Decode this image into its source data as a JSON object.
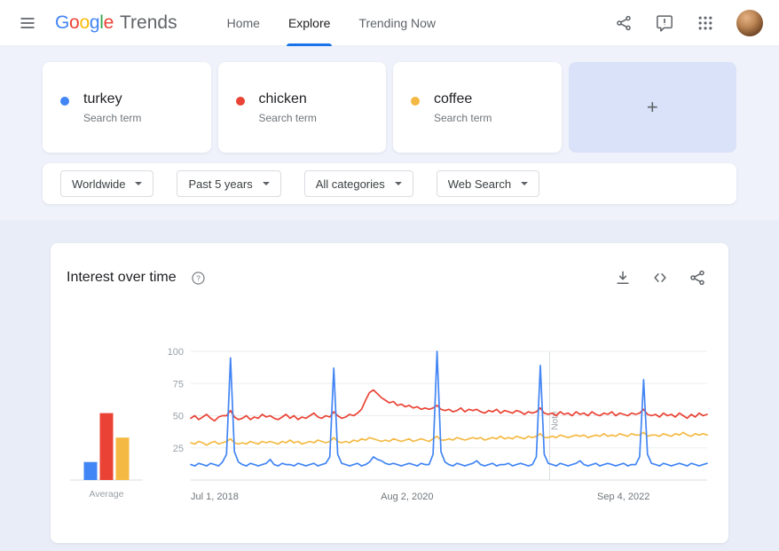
{
  "header": {
    "logo": {
      "letters": [
        "G",
        "o",
        "o",
        "g",
        "l",
        "e"
      ],
      "product": "Trends"
    },
    "nav": [
      {
        "label": "Home",
        "active": false
      },
      {
        "label": "Explore",
        "active": true
      },
      {
        "label": "Trending Now",
        "active": false
      }
    ],
    "right_icons": [
      "share-icon",
      "feedback-icon",
      "apps-grid-icon",
      "avatar"
    ]
  },
  "compare": {
    "terms": [
      {
        "label": "turkey",
        "type_label": "Search term",
        "color": "#4285f4"
      },
      {
        "label": "chicken",
        "type_label": "Search term",
        "color": "#ea4335"
      },
      {
        "label": "coffee",
        "type_label": "Search term",
        "color": "#f4b942"
      }
    ],
    "add_button": {
      "label": "+"
    }
  },
  "filters": [
    {
      "label": "Worldwide"
    },
    {
      "label": "Past 5 years"
    },
    {
      "label": "All categories"
    },
    {
      "label": "Web Search"
    }
  ],
  "panel": {
    "title": "Interest over time",
    "action_icons": [
      "help-icon",
      "download-icon",
      "embed-icon",
      "share-icon"
    ]
  },
  "chart_data": {
    "type": "line",
    "title": "Interest over time",
    "ylim": [
      0,
      100
    ],
    "y_ticks": [
      25,
      50,
      75,
      100
    ],
    "grid": true,
    "legend_position": "none",
    "x_tick_labels": [
      "Jul 1, 2018",
      "Aug 2, 2020",
      "Sep 4, 2022"
    ],
    "x_tick_positions": [
      0,
      0.419,
      0.838
    ],
    "note": {
      "position": 0.695,
      "label": "Note"
    },
    "series": [
      {
        "name": "turkey",
        "color": "#4285f4",
        "values": [
          12,
          11,
          13,
          12,
          11,
          13,
          12,
          11,
          14,
          20,
          95,
          22,
          14,
          12,
          11,
          13,
          12,
          11,
          12,
          13,
          16,
          12,
          11,
          13,
          12,
          12,
          11,
          13,
          12,
          11,
          12,
          13,
          11,
          12,
          13,
          18,
          87,
          20,
          13,
          12,
          11,
          12,
          13,
          11,
          12,
          14,
          18,
          16,
          15,
          13,
          12,
          13,
          12,
          11,
          12,
          13,
          12,
          11,
          13,
          12,
          12,
          20,
          100,
          22,
          14,
          12,
          11,
          13,
          12,
          11,
          12,
          13,
          15,
          12,
          11,
          12,
          13,
          11,
          12,
          12,
          13,
          11,
          12,
          13,
          12,
          11,
          12,
          18,
          89,
          20,
          13,
          12,
          11,
          13,
          12,
          11,
          12,
          13,
          15,
          12,
          11,
          12,
          13,
          11,
          12,
          13,
          12,
          11,
          12,
          13,
          11,
          12,
          12,
          18,
          78,
          20,
          13,
          12,
          11,
          13,
          12,
          11,
          12,
          13,
          12,
          11,
          13,
          12,
          11,
          12,
          13
        ]
      },
      {
        "name": "chicken",
        "color": "#ea4335",
        "values": [
          48,
          50,
          47,
          49,
          51,
          48,
          46,
          49,
          50,
          50,
          54,
          49,
          47,
          48,
          50,
          47,
          49,
          48,
          51,
          49,
          50,
          48,
          47,
          49,
          51,
          48,
          50,
          47,
          49,
          48,
          50,
          52,
          49,
          48,
          50,
          49,
          53,
          50,
          48,
          49,
          51,
          50,
          52,
          55,
          62,
          68,
          70,
          67,
          64,
          62,
          60,
          61,
          58,
          59,
          57,
          58,
          56,
          57,
          55,
          56,
          55,
          56,
          58,
          55,
          54,
          55,
          53,
          54,
          56,
          53,
          55,
          54,
          55,
          53,
          52,
          54,
          53,
          55,
          52,
          54,
          53,
          52,
          54,
          53,
          51,
          53,
          52,
          53,
          56,
          52,
          51,
          52,
          50,
          53,
          51,
          52,
          50,
          53,
          51,
          52,
          50,
          53,
          51,
          50,
          52,
          51,
          53,
          50,
          52,
          51,
          50,
          52,
          51,
          52,
          55,
          51,
          50,
          51,
          49,
          52,
          50,
          51,
          49,
          52,
          50,
          48,
          51,
          49,
          52,
          50,
          51
        ]
      },
      {
        "name": "coffee",
        "color": "#f4b942",
        "values": [
          29,
          28,
          30,
          29,
          27,
          29,
          30,
          28,
          29,
          30,
          32,
          29,
          28,
          29,
          28,
          30,
          29,
          28,
          30,
          29,
          30,
          29,
          28,
          30,
          29,
          31,
          29,
          30,
          28,
          29,
          30,
          29,
          31,
          30,
          29,
          30,
          33,
          30,
          29,
          30,
          29,
          31,
          30,
          32,
          31,
          33,
          32,
          31,
          30,
          31,
          30,
          32,
          31,
          30,
          31,
          32,
          30,
          31,
          32,
          31,
          30,
          32,
          34,
          31,
          31,
          32,
          31,
          33,
          32,
          31,
          32,
          33,
          32,
          33,
          31,
          32,
          33,
          32,
          34,
          32,
          33,
          32,
          34,
          33,
          32,
          34,
          33,
          34,
          36,
          33,
          33,
          34,
          33,
          35,
          34,
          33,
          34,
          35,
          34,
          35,
          33,
          34,
          35,
          34,
          36,
          34,
          35,
          34,
          36,
          35,
          34,
          36,
          35,
          35,
          37,
          34,
          35,
          35,
          34,
          36,
          35,
          34,
          36,
          35,
          37,
          35,
          34,
          36,
          35,
          36,
          35
        ]
      }
    ],
    "average": {
      "label": "Average",
      "values": [
        {
          "name": "turkey",
          "value": 14
        },
        {
          "name": "chicken",
          "value": 52
        },
        {
          "name": "coffee",
          "value": 33
        }
      ]
    }
  }
}
